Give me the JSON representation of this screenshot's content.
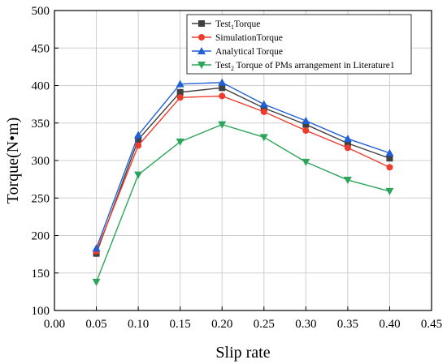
{
  "chart_data": {
    "type": "line",
    "xlabel": "Slip rate",
    "ylabel": "Torque(N•m)",
    "xlim": [
      0.0,
      0.45
    ],
    "ylim": [
      100,
      500
    ],
    "grid": true,
    "legend_position": "top-right",
    "x_ticks": [
      "0.00",
      "0.05",
      "0.10",
      "0.15",
      "0.20",
      "0.25",
      "0.30",
      "0.35",
      "0.40",
      "0.45"
    ],
    "y_ticks": [
      "100",
      "150",
      "200",
      "250",
      "300",
      "350",
      "400",
      "450",
      "500"
    ],
    "x": [
      0.05,
      0.1,
      0.15,
      0.2,
      0.25,
      0.3,
      0.35,
      0.4
    ],
    "series": [
      {
        "name": "Test1Torque",
        "legend_main": "Test",
        "legend_sub": "1",
        "legend_rest": "Torque",
        "color": "#404040",
        "marker": "square",
        "values": [
          176,
          328,
          391,
          397,
          370,
          348,
          323,
          303
        ]
      },
      {
        "name": "SimulationTorque",
        "legend_main": "SimulationTorque",
        "legend_sub": "",
        "legend_rest": "",
        "color": "#ef3b2c",
        "marker": "circle",
        "values": [
          179,
          320,
          384,
          386,
          365,
          340,
          317,
          291
        ]
      },
      {
        "name": "Analytical Torque",
        "legend_main": "Analytical Torque",
        "legend_sub": "",
        "legend_rest": "",
        "color": "#1f5fd6",
        "marker": "triangle-up",
        "values": [
          183,
          334,
          402,
          404,
          375,
          353,
          329,
          310
        ]
      },
      {
        "name": "Test2 Torque of PMs arrangement in Literature1",
        "legend_main": "Test",
        "legend_sub": "2",
        "legend_rest": " Torque of PMs arrangement in Literature1",
        "color": "#2ca55a",
        "marker": "triangle-down",
        "values": [
          138,
          281,
          325,
          348,
          331,
          298,
          274,
          259
        ]
      }
    ]
  }
}
